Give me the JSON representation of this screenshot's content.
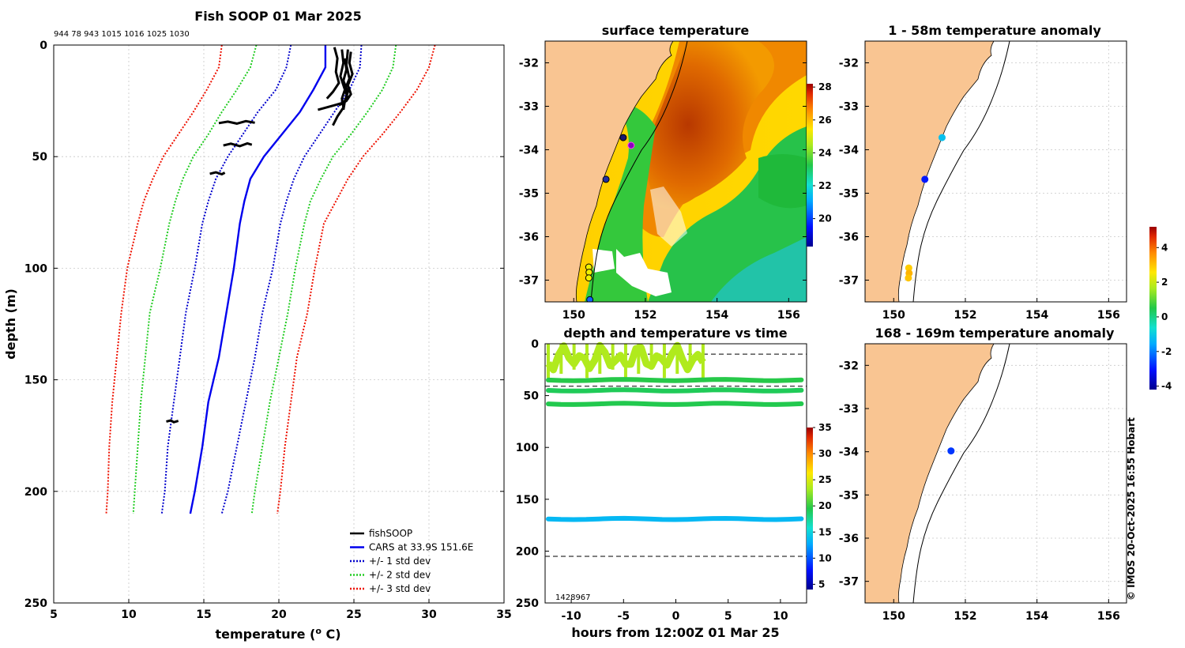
{
  "footer_text": "© IMOS 20-Oct-2025 16:55 Hobart",
  "colors": {
    "land": "#f9c592",
    "fishsoop": "#000000",
    "cars": "#0000ee",
    "std1": "#0000cc",
    "std2": "#22cc22",
    "std3": "#ee1100"
  },
  "chart_data": [
    {
      "id": "profile",
      "type": "line",
      "title": "Fish SOOP 01 Mar 2025",
      "id_list": "944 78 943 1015 1016 1025 1030",
      "xlabel": "temperature (",
      "xlabel_sup": "o",
      "xlabel_end": " C)",
      "ylabel": "depth (m)",
      "xlim": [
        5,
        35
      ],
      "ylim": [
        0,
        250
      ],
      "xticks": [
        5,
        10,
        15,
        20,
        25,
        30,
        35
      ],
      "yticks": [
        0,
        50,
        100,
        150,
        200,
        250
      ],
      "legend_position": "bottom-right",
      "legend": [
        "fishSOOP",
        "CARS at 33.9S 151.6E",
        "+/- 1 std dev",
        "+/- 2 std dev",
        "+/- 3 std dev"
      ],
      "depth": [
        0,
        10,
        20,
        30,
        40,
        50,
        60,
        70,
        80,
        100,
        120,
        140,
        160,
        180,
        200,
        210
      ],
      "cars_mean": [
        23.1,
        23.1,
        22.3,
        21.4,
        20.2,
        19.0,
        18.1,
        17.7,
        17.4,
        17.0,
        16.5,
        16.0,
        15.3,
        14.9,
        14.4,
        14.1
      ],
      "std1_lo": [
        20.8,
        20.5,
        19.8,
        18.6,
        17.6,
        16.6,
        15.8,
        15.3,
        14.9,
        14.4,
        13.8,
        13.4,
        13.0,
        12.6,
        12.4,
        12.2
      ],
      "std1_hi": [
        25.5,
        25.4,
        24.7,
        23.7,
        22.7,
        21.7,
        21.0,
        20.5,
        20.1,
        19.6,
        18.9,
        18.4,
        17.8,
        17.2,
        16.6,
        16.2
      ],
      "std2_lo": [
        18.5,
        18.1,
        17.2,
        16.2,
        15.3,
        14.3,
        13.6,
        13.1,
        12.7,
        12.1,
        11.4,
        11.1,
        10.8,
        10.6,
        10.4,
        10.3
      ],
      "std2_hi": [
        27.8,
        27.6,
        26.9,
        25.9,
        24.8,
        23.6,
        22.8,
        22.1,
        21.7,
        21.1,
        20.6,
        20.0,
        19.4,
        18.9,
        18.4,
        18.2
      ],
      "std3_lo": [
        16.2,
        16.0,
        15.2,
        14.3,
        13.3,
        12.3,
        11.6,
        11.0,
        10.6,
        9.9,
        9.5,
        9.2,
        8.9,
        8.7,
        8.6,
        8.5
      ],
      "std3_hi": [
        30.4,
        30.0,
        29.2,
        28.1,
        26.9,
        25.6,
        24.6,
        23.8,
        23.0,
        22.4,
        21.9,
        21.2,
        20.8,
        20.4,
        20.1,
        19.9
      ],
      "fishsoop_traces": [
        {
          "t": [
            24.2,
            24.3,
            24.1,
            24.4,
            24.2,
            24.3,
            23.9,
            23.6
          ],
          "d": [
            2,
            8,
            14,
            20,
            24,
            28,
            32,
            36
          ]
        },
        {
          "t": [
            24.6,
            24.5,
            24.7,
            24.4,
            24.6,
            24.2,
            23.7,
            22.6
          ],
          "d": [
            2,
            9,
            15,
            20,
            24,
            26,
            27,
            29
          ]
        },
        {
          "t": [
            24.8,
            24.7,
            24.9,
            24.6,
            24.8,
            24.5,
            24.0
          ],
          "d": [
            3,
            8,
            13,
            18,
            22,
            25,
            27
          ]
        },
        {
          "t": [
            23.7,
            23.9,
            23.8,
            24.0,
            23.6,
            23.2
          ],
          "d": [
            1,
            6,
            12,
            17,
            21,
            24
          ]
        },
        {
          "t": [
            24.4,
            24.5,
            24.3,
            24.6,
            24.4,
            24.3
          ],
          "d": [
            6,
            11,
            16,
            21,
            25,
            29
          ]
        },
        {
          "t": [
            16.0,
            16.6,
            17.2,
            17.8,
            18.4
          ],
          "d": [
            35,
            34.3,
            35.2,
            34.1,
            34.8
          ]
        },
        {
          "t": [
            16.3,
            16.8,
            17.4,
            17.9,
            18.2
          ],
          "d": [
            45,
            44.2,
            45.3,
            44.1,
            44.7
          ]
        },
        {
          "t": [
            15.4,
            15.8,
            16.2,
            16.4
          ],
          "d": [
            57.7,
            57.0,
            57.9,
            57.2
          ]
        },
        {
          "t": [
            12.5,
            12.8,
            13.0,
            13.3
          ],
          "d": [
            168.7,
            168.2,
            169.0,
            168.4
          ]
        }
      ]
    },
    {
      "id": "sst_map",
      "type": "heatmap",
      "title": "surface temperature",
      "xlim": [
        149.2,
        156.5
      ],
      "ylim": [
        -37.5,
        -31.5
      ],
      "xticks": [
        150,
        152,
        154,
        156
      ],
      "yticks": [
        -32,
        -33,
        -34,
        -35,
        -36,
        -37
      ],
      "colorbar_ticks": [
        20,
        22,
        24,
        26,
        28
      ],
      "colorbar_range": [
        18.3,
        28.2
      ]
    },
    {
      "id": "depth_time",
      "type": "scatter",
      "title": "depth and temperature vs time",
      "xlabel": "hours from 12:00Z 01 Mar 25",
      "xlim": [
        -12.5,
        12.5
      ],
      "ylim": [
        0,
        250
      ],
      "xticks": [
        -10,
        -5,
        0,
        5,
        10
      ],
      "yticks": [
        0,
        50,
        100,
        150,
        200,
        250
      ],
      "dashed_depths": [
        10,
        41,
        205
      ],
      "colorbar_ticks": [
        5,
        10,
        15,
        20,
        25,
        30,
        35
      ],
      "colorbar_range": [
        4,
        35
      ],
      "overlap_label": "1428967",
      "bands": [
        {
          "depth": 35,
          "temp": 19.6
        },
        {
          "depth": 45,
          "temp": 19.1
        },
        {
          "depth": 58,
          "temp": 19.4
        },
        {
          "depth": 169,
          "temp": 13.5
        }
      ],
      "surface_band": {
        "t": [
          -12.2,
          2.6
        ],
        "depth": [
          0,
          33
        ],
        "temp": 23.5
      }
    },
    {
      "id": "anom_upper",
      "type": "scatter",
      "title": "1 - 58m temperature anomaly",
      "xlim": [
        149.2,
        156.5
      ],
      "ylim": [
        -37.5,
        -31.5
      ],
      "xticks": [
        150,
        152,
        154,
        156
      ],
      "yticks": [
        -32,
        -33,
        -34,
        -35,
        -36,
        -37
      ],
      "points": [
        {
          "lon": 151.35,
          "lat": -33.72,
          "anom": -1.2
        },
        {
          "lon": 150.87,
          "lat": -34.68,
          "anom": -3.0
        },
        {
          "lon": 150.42,
          "lat": -36.72,
          "anom": 2.9
        },
        {
          "lon": 150.43,
          "lat": -36.84,
          "anom": 3.2
        },
        {
          "lon": 150.41,
          "lat": -36.95,
          "anom": 3.0
        }
      ]
    },
    {
      "id": "anom_deep",
      "type": "scatter",
      "title": "168 - 169m temperature anomaly",
      "xlim": [
        149.2,
        156.5
      ],
      "ylim": [
        -37.5,
        -31.5
      ],
      "xticks": [
        150,
        152,
        154,
        156
      ],
      "yticks": [
        -32,
        -33,
        -34,
        -35,
        -36,
        -37
      ],
      "points": [
        {
          "lon": 151.6,
          "lat": -33.98,
          "anom": -2.7
        }
      ]
    },
    {
      "id": "anom_colorbar",
      "type": "heatmap",
      "colorbar_ticks": [
        -4,
        -2,
        0,
        2,
        4
      ],
      "colorbar_range": [
        -4.2,
        5.2
      ]
    }
  ]
}
